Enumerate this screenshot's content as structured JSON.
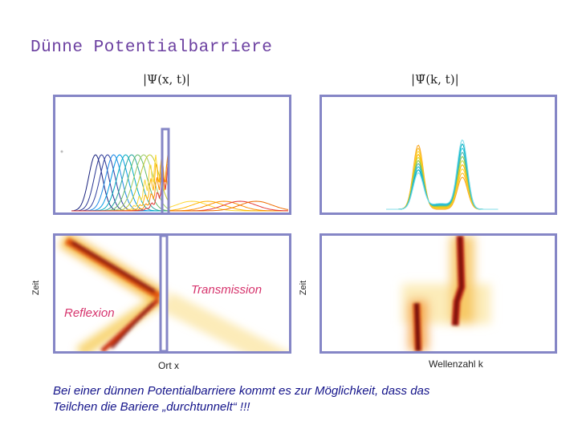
{
  "slide": {
    "title": "Dünne Potentialbarriere",
    "caption_line1": "Bei einer dünnen Potentialbarriere kommt es zur Möglichkeit, dass das",
    "caption_line2": "Teilchen die Bariere „durchtunnelt“ !!!"
  },
  "plots": {
    "left_heading": "|Ψ(x, t)|",
    "right_heading": "|Ψ̃(k, t)|",
    "left_side_label": "Zeit",
    "right_side_label": "Zeit",
    "left_x_label": "Ort x",
    "right_x_label": "Wellenzahl k",
    "transmission_label": "Transmission",
    "reflexion_label": "Reflexion"
  },
  "colors": {
    "frame": "#8586c6",
    "title": "#6b3fa0",
    "annotation": "#d6336c",
    "caption": "#14148a"
  }
}
